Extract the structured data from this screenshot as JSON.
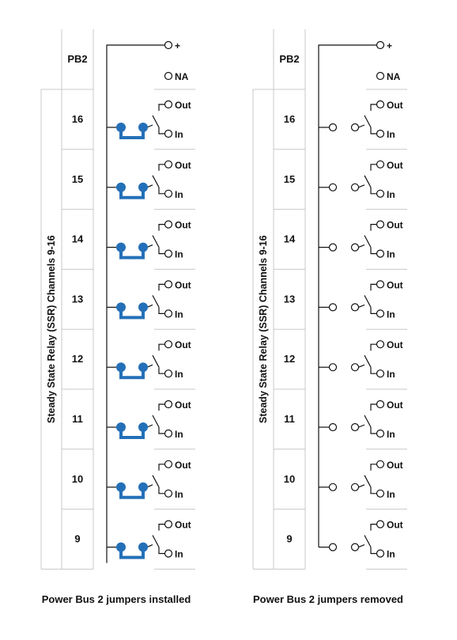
{
  "panels": [
    {
      "bus_label": "PB2",
      "side_title": "Steady State Relay (SSR) Channels 9-16",
      "plus_label": "+",
      "na_label": "NA",
      "out_label": "Out",
      "in_label": "In",
      "channels": [
        "16",
        "15",
        "14",
        "13",
        "12",
        "11",
        "10",
        "9"
      ],
      "jumpers_installed": true,
      "caption": "Power Bus 2 jumpers installed"
    },
    {
      "bus_label": "PB2",
      "side_title": "Steady State Relay (SSR) Channels 9-16",
      "plus_label": "+",
      "na_label": "NA",
      "out_label": "Out",
      "in_label": "In",
      "channels": [
        "16",
        "15",
        "14",
        "13",
        "12",
        "11",
        "10",
        "9"
      ],
      "jumpers_installed": false,
      "caption": "Power Bus 2 jumpers removed"
    }
  ],
  "colors": {
    "jumper": "#2470b8",
    "line": "#111111",
    "grid": "#c8c8c8"
  }
}
